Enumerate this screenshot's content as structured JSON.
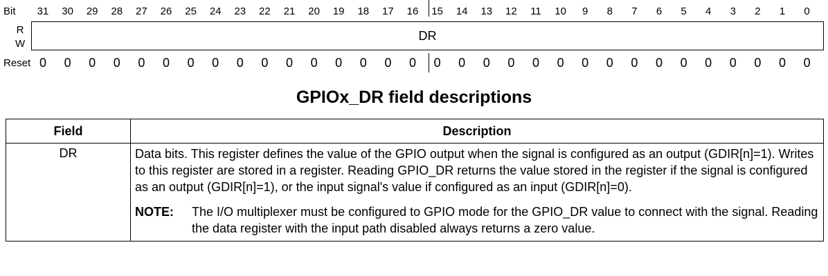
{
  "register": {
    "bit_label": "Bit",
    "bits": [
      "31",
      "30",
      "29",
      "28",
      "27",
      "26",
      "25",
      "24",
      "23",
      "22",
      "21",
      "20",
      "19",
      "18",
      "17",
      "16",
      "15",
      "14",
      "13",
      "12",
      "11",
      "10",
      "9",
      "8",
      "7",
      "6",
      "5",
      "4",
      "3",
      "2",
      "1",
      "0"
    ],
    "read_label": "R",
    "write_label": "W",
    "field_name": "DR",
    "reset_label": "Reset",
    "reset_values": [
      "0",
      "0",
      "0",
      "0",
      "0",
      "0",
      "0",
      "0",
      "0",
      "0",
      "0",
      "0",
      "0",
      "0",
      "0",
      "0",
      "0",
      "0",
      "0",
      "0",
      "0",
      "0",
      "0",
      "0",
      "0",
      "0",
      "0",
      "0",
      "0",
      "0",
      "0",
      "0"
    ]
  },
  "table": {
    "title": "GPIOx_DR field descriptions",
    "header_field": "Field",
    "header_description": "Description",
    "rows": [
      {
        "field": "DR",
        "description": "Data bits. This register defines the value of the GPIO output when the signal is configured as an output (GDIR[n]=1). Writes to this register are stored in a register. Reading GPIO_DR returns the value stored in the register if the signal is configured as an output (GDIR[n]=1), or the input signal's value if configured as an input (GDIR[n]=0).",
        "note_label": "NOTE:",
        "note_text": "The I/O multiplexer must be configured to GPIO mode for the GPIO_DR value to connect with the signal. Reading the data register with the input path disabled always returns a zero value."
      }
    ]
  }
}
